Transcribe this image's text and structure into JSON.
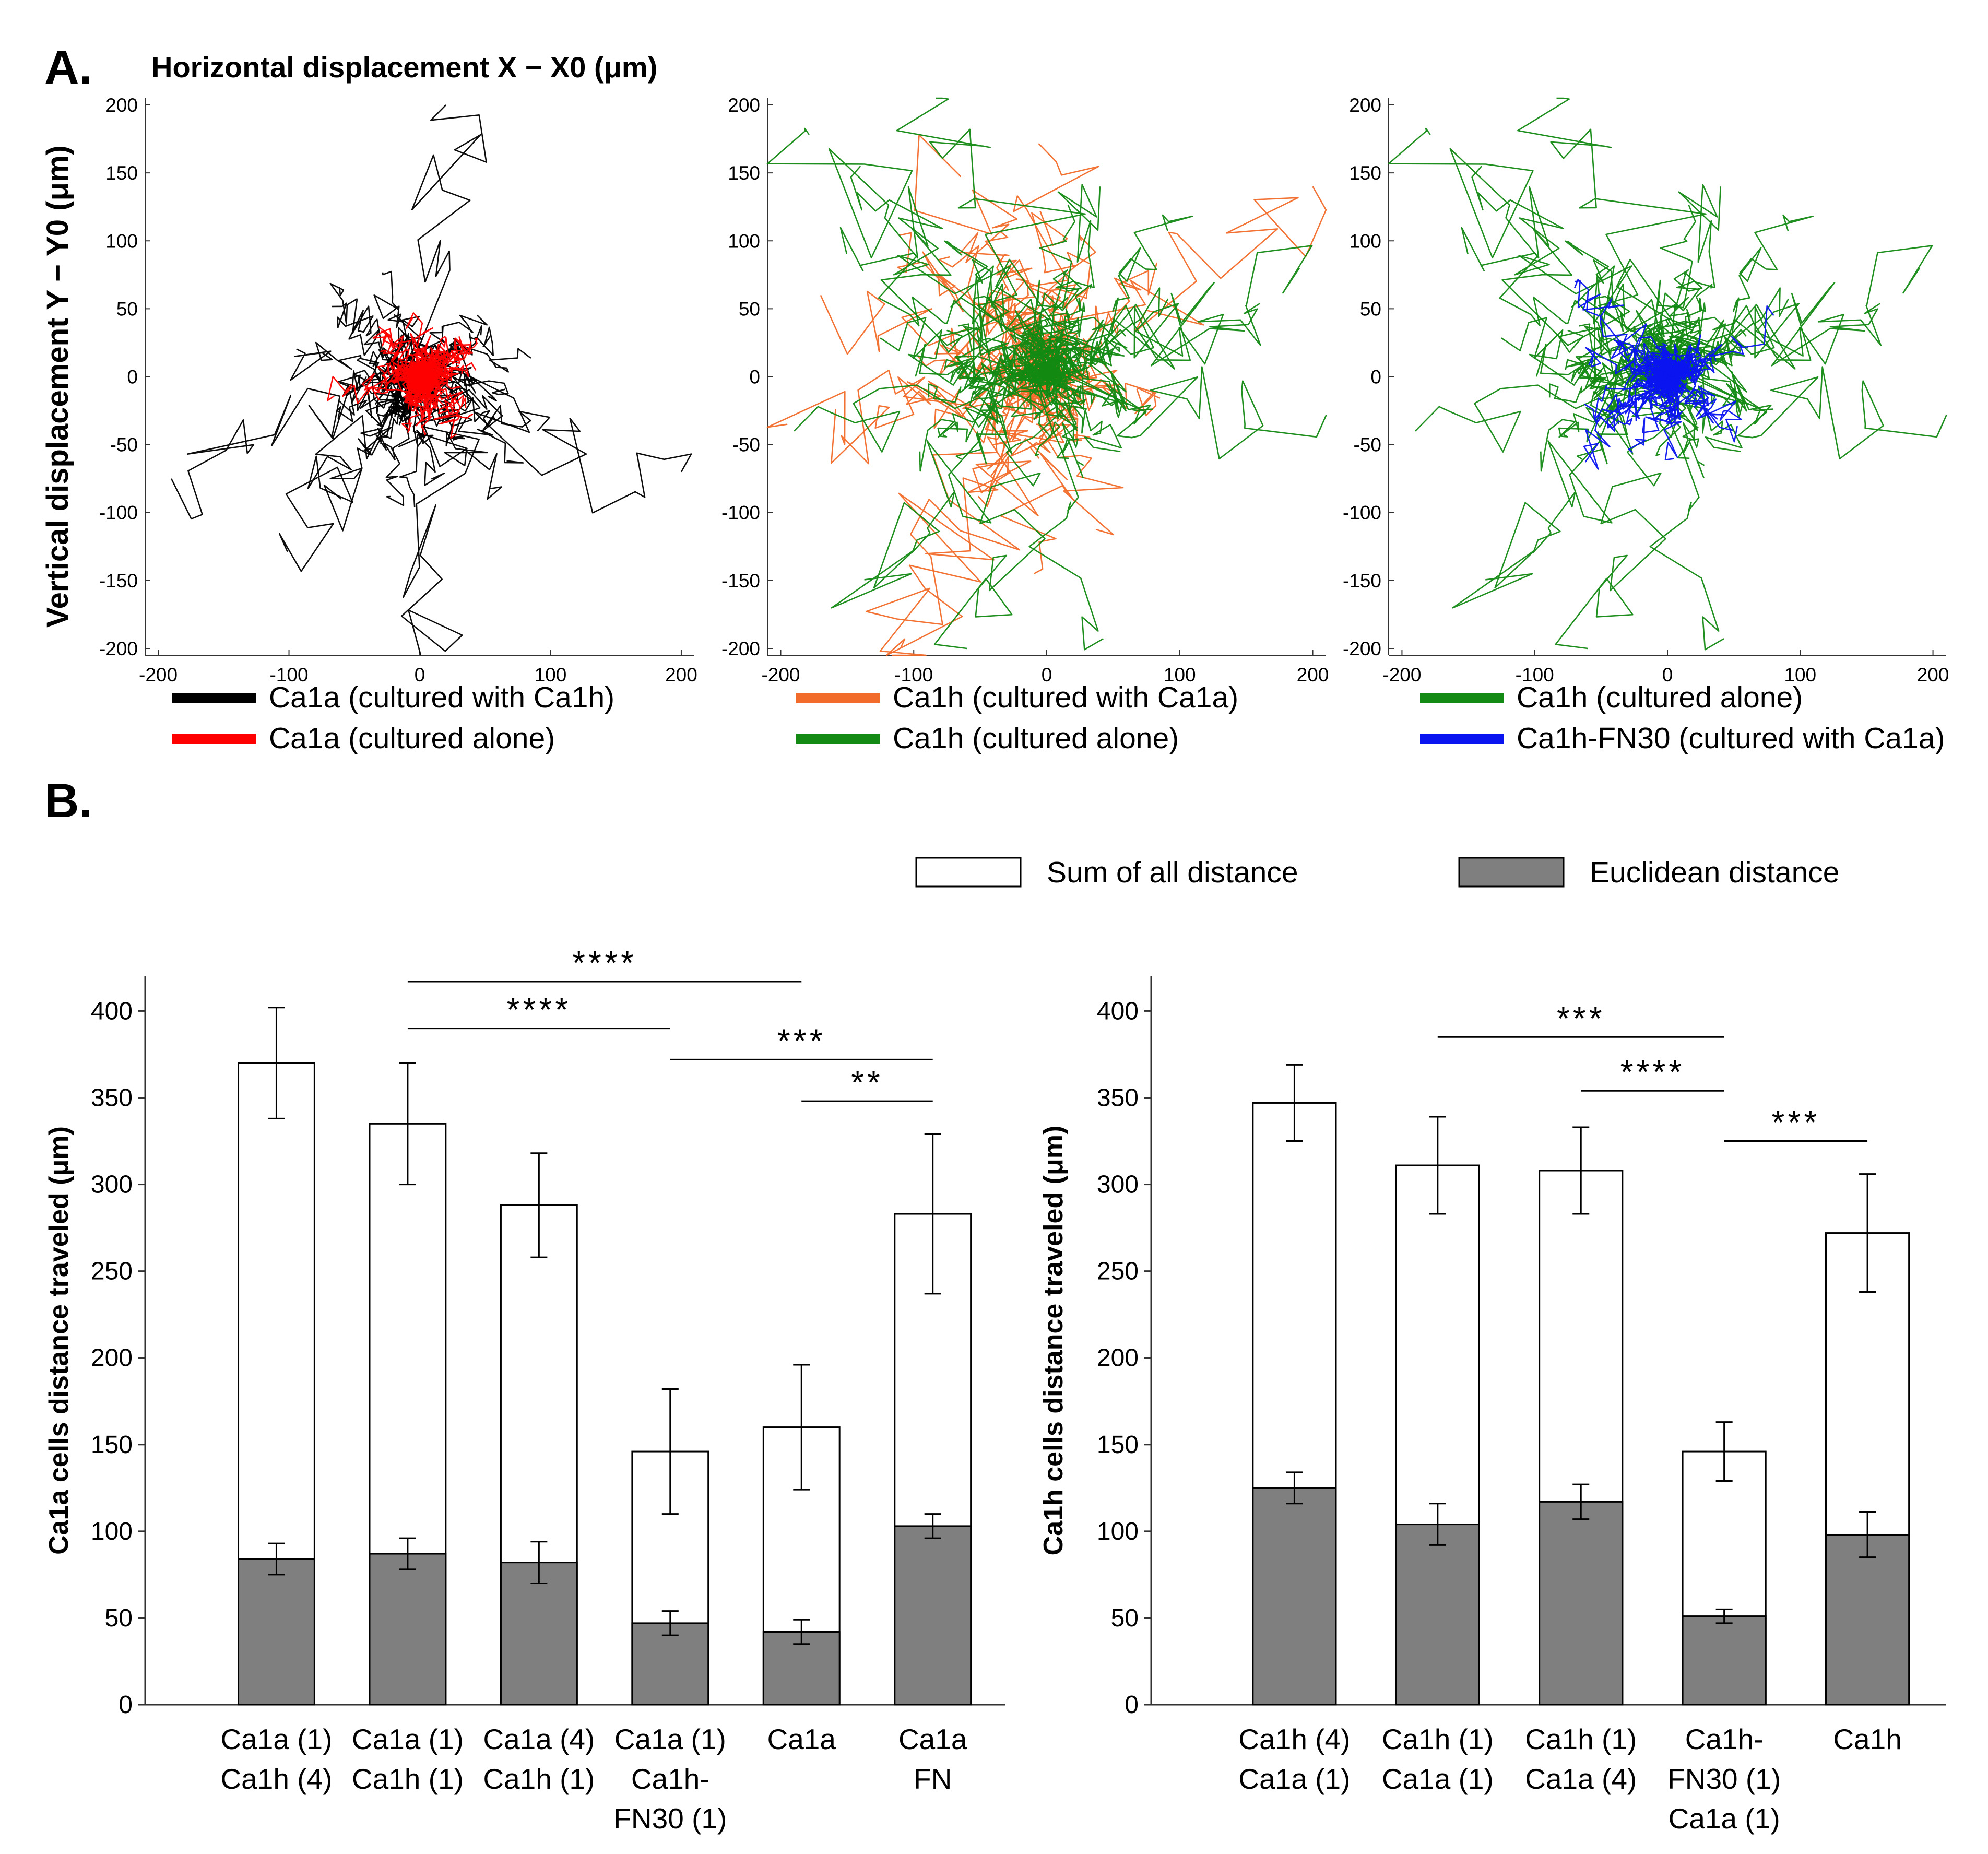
{
  "panel_a_label": "A.",
  "panel_b_label": "B.",
  "colors": {
    "ca1a_with_ca1h": "#000000",
    "ca1a_alone": "#ff0000",
    "ca1h_with_ca1a": "#f26b2a",
    "ca1h_alone": "#138a13",
    "ca1h_fn30_with_ca1a": "#0a14f0",
    "euclid_fill": "#7f7f7f",
    "sum_fill": "#ffffff"
  },
  "chart_data": [
    {
      "type": "scatter",
      "title": "Horizontal displacement X − X0 (μm)",
      "xlabel": "Horizontal displacement X − X0 (μm)",
      "ylabel": "Vertical displacement Y − Y0 (μm)",
      "xlim": [
        -210,
        210
      ],
      "ylim": [
        -205,
        205
      ],
      "xticks": [
        "-200",
        "-100",
        "0",
        "100",
        "200"
      ],
      "yticks": [
        "200",
        "150",
        "100",
        "50",
        "0",
        "-50",
        "-100",
        "-150",
        "-200"
      ],
      "series": [
        {
          "name": "Ca1a (cultured with Ca1h)",
          "color": "#000000",
          "n": 45,
          "spread": 70,
          "seed": 11,
          "extra": [
            [
              -190,
              -75
            ],
            [
              200,
              -70
            ],
            [
              20,
              200
            ],
            [
              -60,
              -90
            ],
            [
              90,
              -40
            ]
          ]
        },
        {
          "name": "Ca1a (cultured alone)",
          "color": "#ff0000",
          "n": 60,
          "spread": 30,
          "seed": 23,
          "extra": []
        }
      ]
    },
    {
      "type": "scatter",
      "xlim": [
        -210,
        210
      ],
      "ylim": [
        -205,
        205
      ],
      "xticks": [
        "-200",
        "-100",
        "0",
        "100",
        "200"
      ],
      "yticks": [
        "200",
        "150",
        "100",
        "50",
        "0",
        "-50",
        "-100",
        "-150",
        "-200"
      ],
      "series": [
        {
          "name": "Ca1h (cultured with Ca1a)",
          "color": "#f26b2a",
          "n": 45,
          "spread": 95,
          "seed": 37,
          "extra": [
            [
              -195,
              -35
            ],
            [
              -110,
              -200
            ],
            [
              200,
              140
            ],
            [
              -170,
              60
            ]
          ]
        },
        {
          "name": "Ca1h (cultured alone)",
          "color": "#138a13",
          "n": 50,
          "spread": 95,
          "seed": 53,
          "extra": [
            [
              -140,
              155
            ],
            [
              190,
              80
            ],
            [
              -190,
              -40
            ],
            [
              40,
              140
            ],
            [
              -60,
              -200
            ]
          ]
        }
      ]
    },
    {
      "type": "scatter",
      "xlim": [
        -210,
        210
      ],
      "ylim": [
        -205,
        205
      ],
      "xticks": [
        "-200",
        "-100",
        "0",
        "100",
        "200"
      ],
      "yticks": [
        "200",
        "150",
        "100",
        "50",
        "0",
        "-50",
        "-100",
        "-150",
        "-200"
      ],
      "series": [
        {
          "name": "Ca1h (cultured alone)",
          "color": "#138a13",
          "n": 50,
          "spread": 95,
          "seed": 53,
          "extra": [
            [
              -140,
              155
            ],
            [
              190,
              80
            ],
            [
              -190,
              -40
            ],
            [
              40,
              140
            ],
            [
              -60,
              -200
            ]
          ]
        },
        {
          "name": "Ca1h-FN30 (cultured with Ca1a)",
          "color": "#0a14f0",
          "n": 55,
          "spread": 40,
          "seed": 71,
          "extra": [
            [
              -70,
              70
            ],
            [
              80,
              45
            ]
          ]
        }
      ]
    },
    {
      "type": "bar",
      "ylabel": "Ca1a cells distance traveled (μm)",
      "ylim": [
        0,
        420
      ],
      "yticks": [
        "0",
        "50",
        "100",
        "150",
        "200",
        "250",
        "300",
        "350",
        "400"
      ],
      "categories": [
        [
          "Ca1a (1)",
          "Ca1h (4)"
        ],
        [
          "Ca1a (1)",
          "Ca1h (1)"
        ],
        [
          "Ca1a (4)",
          "Ca1h (1)"
        ],
        [
          "Ca1a (1)",
          "Ca1h-",
          "FN30 (1)"
        ],
        [
          "Ca1a"
        ],
        [
          "Ca1a",
          "FN"
        ]
      ],
      "series": [
        {
          "name": "Sum of all distance",
          "values": [
            370,
            335,
            288,
            146,
            160,
            283
          ],
          "err": [
            32,
            35,
            30,
            36,
            36,
            46
          ]
        },
        {
          "name": "Euclidean distance",
          "values": [
            84,
            87,
            82,
            47,
            42,
            103
          ],
          "err": [
            9,
            9,
            12,
            7,
            7,
            7
          ]
        }
      ],
      "significance": [
        {
          "from": 1,
          "to": 4,
          "label": "****",
          "y": 417
        },
        {
          "from": 1,
          "to": 3,
          "label": "****",
          "y": 390
        },
        {
          "from": 3,
          "to": 5,
          "label": "***",
          "y": 372
        },
        {
          "from": 4,
          "to": 5,
          "label": "**",
          "y": 348
        }
      ]
    },
    {
      "type": "bar",
      "ylabel": "Ca1h cells distance traveled (μm)",
      "ylim": [
        0,
        420
      ],
      "yticks": [
        "0",
        "50",
        "100",
        "150",
        "200",
        "250",
        "300",
        "350",
        "400"
      ],
      "categories": [
        [
          "Ca1h (4)",
          "Ca1a (1)"
        ],
        [
          "Ca1h (1)",
          "Ca1a (1)"
        ],
        [
          "Ca1h (1)",
          "Ca1a (4)"
        ],
        [
          "Ca1h-",
          "FN30 (1)",
          "Ca1a (1)"
        ],
        [
          "Ca1h"
        ]
      ],
      "series": [
        {
          "name": "Sum of all distance",
          "values": [
            347,
            311,
            308,
            146,
            272
          ],
          "err": [
            22,
            28,
            25,
            17,
            34
          ]
        },
        {
          "name": "Euclidean distance",
          "values": [
            125,
            104,
            117,
            51,
            98
          ],
          "err": [
            9,
            12,
            10,
            4,
            13
          ]
        }
      ],
      "significance": [
        {
          "from": 1,
          "to": 3,
          "label": "***",
          "y": 385
        },
        {
          "from": 2,
          "to": 3,
          "label": "****",
          "y": 354
        },
        {
          "from": 3,
          "to": 4,
          "label": "***",
          "y": 325
        }
      ]
    }
  ]
}
